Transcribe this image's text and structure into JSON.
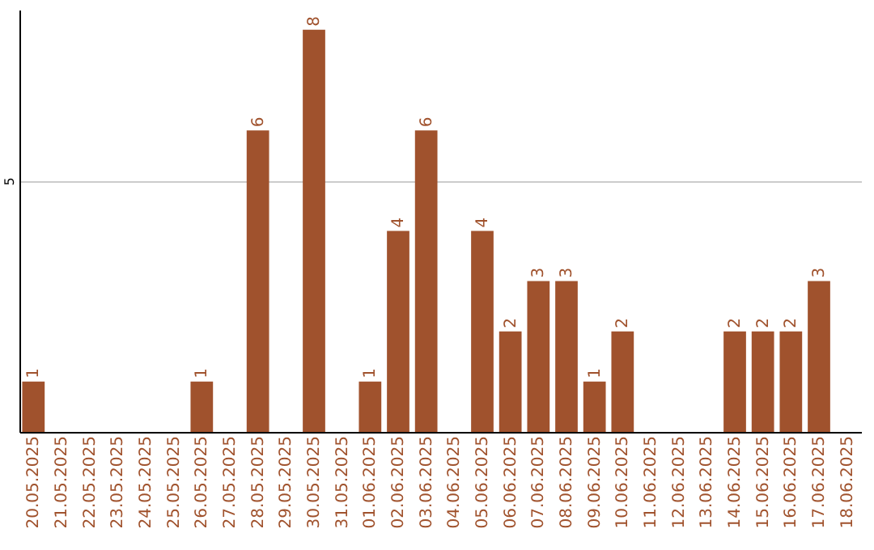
{
  "chart_data": {
    "type": "bar",
    "categories": [
      "20.05.2025",
      "21.05.2025",
      "22.05.2025",
      "23.05.2025",
      "24.05.2025",
      "25.05.2025",
      "26.05.2025",
      "27.05.2025",
      "28.05.2025",
      "29.05.2025",
      "30.05.2025",
      "31.05.2025",
      "01.06.2025",
      "02.06.2025",
      "03.06.2025",
      "04.06.2025",
      "05.06.2025",
      "06.06.2025",
      "07.06.2025",
      "08.06.2025",
      "09.06.2025",
      "10.06.2025",
      "11.06.2025",
      "12.06.2025",
      "13.06.2025",
      "14.06.2025",
      "15.06.2025",
      "16.06.2025",
      "17.06.2025",
      "18.06.2025"
    ],
    "values": [
      1,
      null,
      null,
      null,
      null,
      null,
      1,
      null,
      6,
      null,
      8,
      null,
      1,
      4,
      6,
      null,
      4,
      2,
      3,
      3,
      1,
      2,
      null,
      null,
      null,
      2,
      2,
      2,
      3,
      null
    ],
    "color": "#a0522d",
    "ylim": [
      0,
      8.4
    ],
    "yticks": [
      5
    ],
    "grid": "y",
    "data_labels": true
  }
}
